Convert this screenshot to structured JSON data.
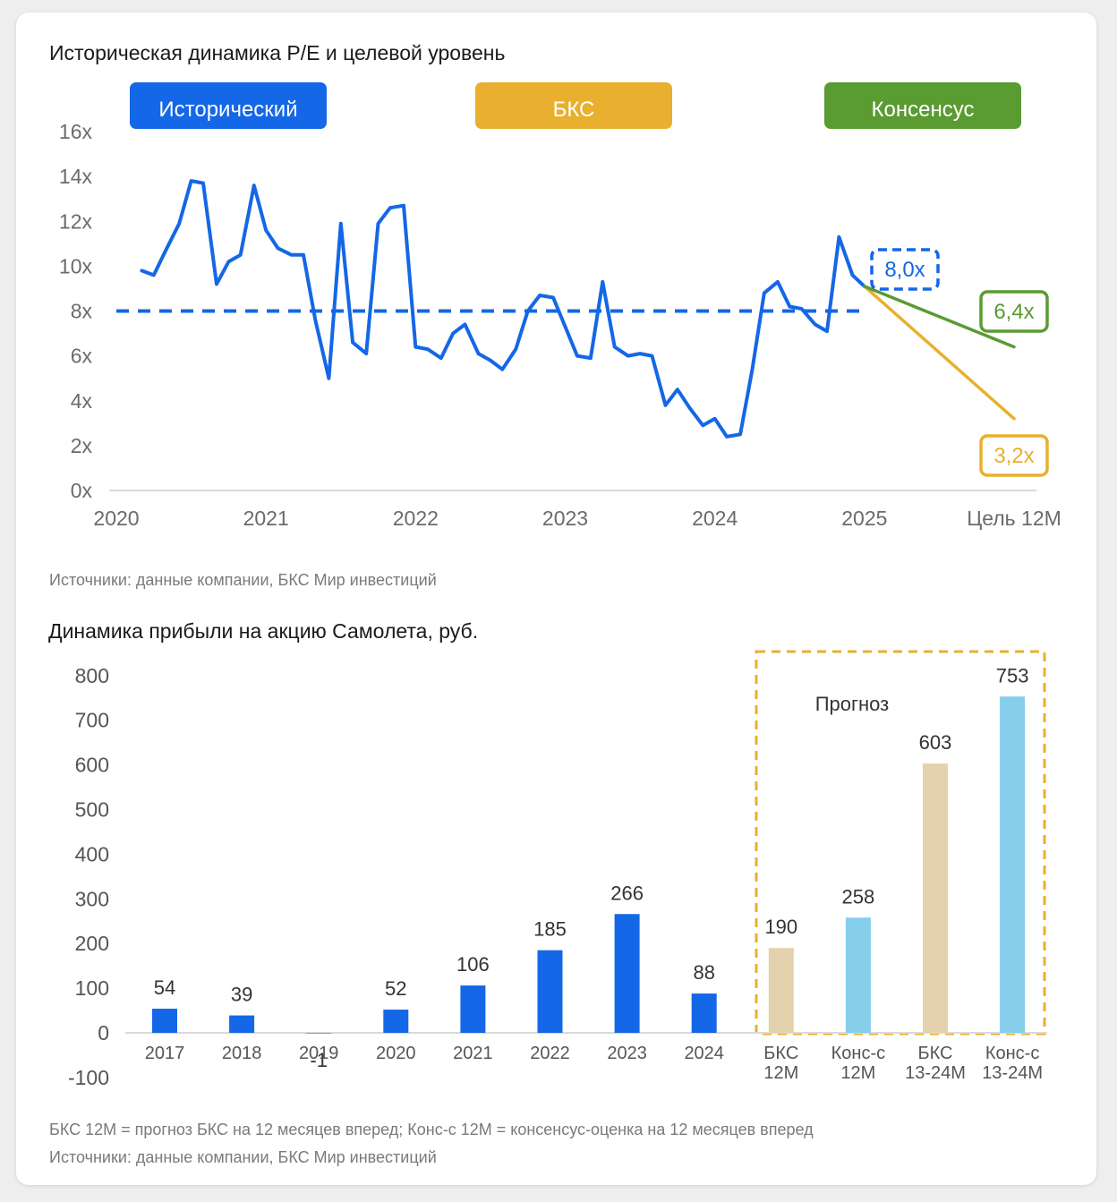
{
  "colors": {
    "historical": "#1467e6",
    "bcs": "#e8b02e",
    "consensus": "#5a9b32",
    "forecast_bcs_bar": "#e3d2ad",
    "forecast_cons_bar": "#85ceec",
    "grid": "#d9d9d9"
  },
  "pe_chart": {
    "title": "Историческая динамика P/E и целевой уровень",
    "legend": {
      "historical": "Исторический",
      "bcs": "БКС",
      "consensus": "Консенсус"
    },
    "source": "Источники: данные компании, БКС Мир инвестиций"
  },
  "eps_chart": {
    "title": "Динамика прибыли на акцию Самолета, руб.",
    "forecast_label": "Прогноз",
    "footnote": "БКС 12М = прогноз БКС на 12 месяцев вперед; Конс-с 12М = консенсус-оценка на 12 месяцев вперед",
    "source": "Источники: данные компании, БКС Мир инвестиций"
  },
  "chart_data": [
    {
      "type": "line",
      "title": "Историческая динамика P/E и целевой уровень",
      "xlabel": "",
      "ylabel": "",
      "ylim": [
        0,
        16
      ],
      "xlim": [
        2020,
        2026
      ],
      "yticks": [
        "0x",
        "2x",
        "4x",
        "6x",
        "8x",
        "10x",
        "12x",
        "14x",
        "16x"
      ],
      "xticks": [
        "2020",
        "2021",
        "2022",
        "2023",
        "2024",
        "2025",
        "Цель 12М"
      ],
      "series": [
        {
          "name": "Исторический",
          "x": [
            2020.17,
            2020.25,
            2020.33,
            2020.42,
            2020.5,
            2020.58,
            2020.67,
            2020.75,
            2020.83,
            2020.92,
            2021.0,
            2021.08,
            2021.17,
            2021.25,
            2021.33,
            2021.42,
            2021.5,
            2021.58,
            2021.67,
            2021.75,
            2021.83,
            2021.92,
            2022.0,
            2022.08,
            2022.17,
            2022.25,
            2022.33,
            2022.42,
            2022.5,
            2022.58,
            2022.67,
            2022.75,
            2022.83,
            2022.92,
            2023.0,
            2023.08,
            2023.17,
            2023.25,
            2023.33,
            2023.42,
            2023.5,
            2023.58,
            2023.67,
            2023.75,
            2023.83,
            2023.92,
            2024.0,
            2024.08,
            2024.17,
            2024.25,
            2024.33,
            2024.42,
            2024.5,
            2024.58,
            2024.67,
            2024.75,
            2024.83,
            2024.92,
            2025.0
          ],
          "values": [
            9.8,
            9.6,
            10.7,
            11.9,
            13.8,
            13.7,
            9.2,
            10.2,
            10.5,
            13.6,
            11.6,
            10.8,
            10.5,
            10.5,
            7.6,
            5.0,
            11.9,
            6.6,
            6.1,
            11.9,
            12.6,
            12.7,
            6.4,
            6.3,
            5.9,
            7.0,
            7.4,
            6.1,
            5.8,
            5.4,
            6.3,
            8.0,
            8.7,
            8.6,
            7.3,
            6.0,
            5.9,
            9.3,
            6.4,
            6.0,
            6.1,
            6.0,
            3.8,
            4.5,
            3.7,
            2.9,
            3.2,
            2.4,
            2.5,
            5.4,
            8.8,
            9.3,
            8.2,
            8.1,
            7.4,
            7.1,
            11.3,
            9.6,
            9.1
          ],
          "color": "#1467e6"
        },
        {
          "name": "Исторический (среднее)",
          "style": "dashed",
          "x": [
            2020,
            2025
          ],
          "values": [
            8.0,
            8.0
          ],
          "color": "#1467e6"
        },
        {
          "name": "БКС",
          "x": [
            2025.0,
            2026.0
          ],
          "values": [
            9.1,
            3.2
          ],
          "color": "#e8b02e"
        },
        {
          "name": "Консенсус",
          "x": [
            2025.0,
            2026.0
          ],
          "values": [
            9.1,
            6.4
          ],
          "color": "#5a9b32"
        }
      ],
      "annotations": [
        "8,0x",
        "6,4x",
        "3,2x"
      ]
    },
    {
      "type": "bar",
      "title": "Динамика прибыли на акцию Самолета, руб.",
      "xlabel": "",
      "ylabel": "",
      "ylim": [
        -100,
        800
      ],
      "yticks": [
        "800",
        "700",
        "600",
        "500",
        "400",
        "300",
        "200",
        "100",
        "0",
        "-100"
      ],
      "categories": [
        "2017",
        "2018",
        "2019",
        "2020",
        "2021",
        "2022",
        "2023",
        "2024",
        "БКС\n12М",
        "Конс-с\n12М",
        "БКС\n13-24М",
        "Конс-с\n13-24М"
      ],
      "values": [
        54,
        39,
        -1,
        52,
        106,
        185,
        266,
        88,
        190,
        258,
        603,
        753
      ],
      "labels": [
        "54",
        "39",
        "-1",
        "52",
        "106",
        "185",
        "266",
        "88",
        "190",
        "258",
        "603",
        "753"
      ],
      "bar_colors": [
        "#1467e6",
        "#1467e6",
        "#1467e6",
        "#1467e6",
        "#1467e6",
        "#1467e6",
        "#1467e6",
        "#1467e6",
        "#e3d2ad",
        "#85ceec",
        "#e3d2ad",
        "#85ceec"
      ],
      "annotation": "Прогноз"
    }
  ]
}
